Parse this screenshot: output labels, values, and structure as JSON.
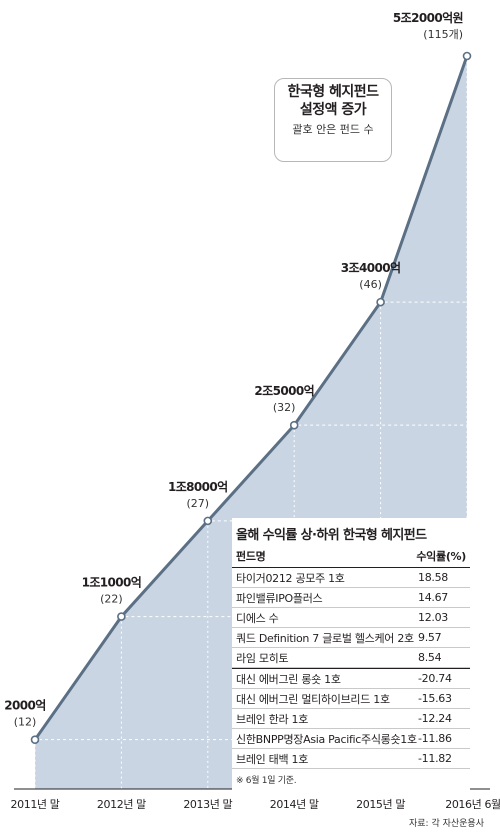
{
  "chart_data": {
    "type": "area",
    "categories": [
      "2011년 말",
      "2012년 말",
      "2013년 말",
      "2014년 말",
      "2015년 말",
      "2016년 6월"
    ],
    "values_eok": [
      2000,
      11000,
      18000,
      25000,
      34000,
      52000
    ],
    "point_labels": [
      "2000억",
      "1조1000억",
      "1조8000억",
      "2조5000억",
      "3조4000억",
      "5조2000억원"
    ],
    "fund_counts": [
      "(12)",
      "(22)",
      "(27)",
      "(32)",
      "(46)",
      "(115개)"
    ],
    "ylim": [
      0,
      55000
    ],
    "colors": {
      "fill": "#c9d5e3",
      "line": "#5b6f85"
    }
  },
  "callout": {
    "title_line1": "한국형 헤지펀드",
    "title_line2": "설정액 증가",
    "subtitle": "괄호 안은 펀드 수"
  },
  "table": {
    "title": "올해 수익률 상·하위 한국형 헤지펀드",
    "col_name": "펀드명",
    "col_return": "수익률(%)",
    "rows": [
      {
        "name": "타이거0212 공모주 1호",
        "value": "18.58"
      },
      {
        "name": "파인밸류IPO플러스",
        "value": "14.67"
      },
      {
        "name": "디에스 수",
        "value": "12.03"
      },
      {
        "name": "쿼드 Definition 7 글로벌 헬스케어 2호",
        "value": "9.57"
      },
      {
        "name": "라임 모히토",
        "value": "8.54"
      },
      {
        "name": "대신 에버그린 롱숏 1호",
        "value": "-20.74"
      },
      {
        "name": "대신 에버그린 멀티하이브리드 1호",
        "value": "-15.63"
      },
      {
        "name": "브레인 한라 1호",
        "value": "-12.24"
      },
      {
        "name": "신한BNPP명장Asia Pacific주식롱숏1호",
        "value": "-11.86"
      },
      {
        "name": "브레인 태백 1호",
        "value": "-11.82"
      }
    ],
    "note": "※ 6월 1일 기준."
  },
  "source": "자료: 각 자산운용사"
}
